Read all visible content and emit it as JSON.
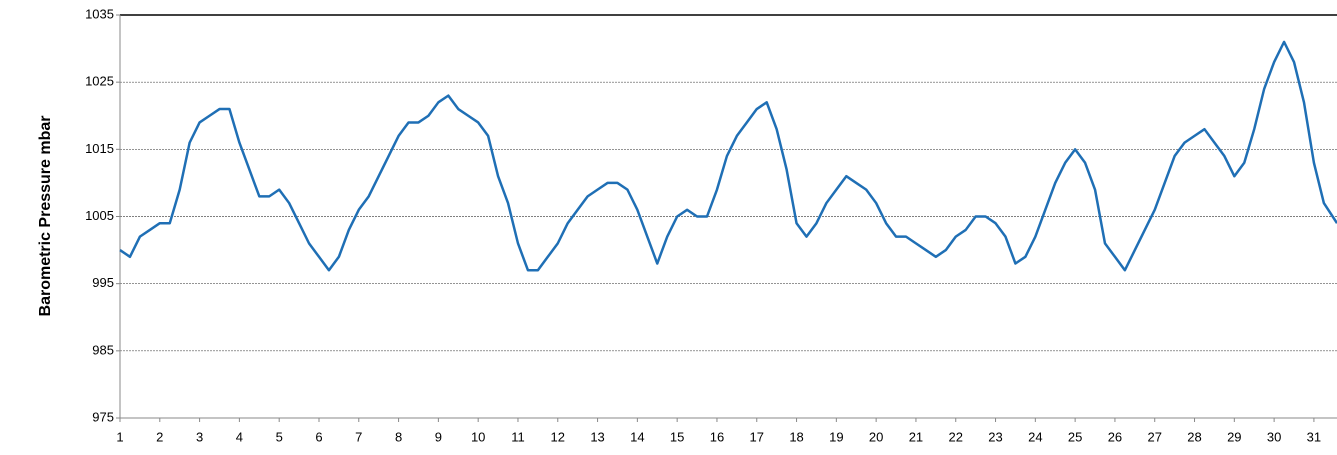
{
  "chart_data": {
    "type": "line",
    "y_label": "Barometric Pressure mbar",
    "xlim": [
      1,
      31.58
    ],
    "xticks": [
      1,
      2,
      3,
      4,
      5,
      6,
      7,
      8,
      9,
      10,
      11,
      12,
      13,
      14,
      15,
      16,
      17,
      18,
      19,
      20,
      21,
      22,
      23,
      24,
      25,
      26,
      27,
      28,
      29,
      30,
      31
    ],
    "ylim": [
      975,
      1035
    ],
    "yticks": [
      975,
      985,
      995,
      1005,
      1015,
      1025,
      1035
    ],
    "grid": true,
    "series": [
      {
        "color": "#1f6fb5",
        "x": [
          1,
          1.25,
          1.5,
          1.75,
          2,
          2.25,
          2.5,
          2.75,
          3,
          3.25,
          3.5,
          3.75,
          4,
          4.25,
          4.5,
          4.75,
          5,
          5.25,
          5.5,
          5.75,
          6,
          6.25,
          6.5,
          6.75,
          7,
          7.25,
          7.5,
          7.75,
          8,
          8.25,
          8.5,
          8.75,
          9,
          9.25,
          9.5,
          9.75,
          10,
          10.25,
          10.5,
          10.75,
          11,
          11.25,
          11.5,
          11.75,
          12,
          12.25,
          12.5,
          12.75,
          13,
          13.25,
          13.5,
          13.75,
          14,
          14.25,
          14.5,
          14.75,
          15,
          15.25,
          15.5,
          15.75,
          16,
          16.25,
          16.5,
          16.75,
          17,
          17.25,
          17.5,
          17.75,
          18,
          18.25,
          18.5,
          18.75,
          19,
          19.25,
          19.5,
          19.75,
          20,
          20.25,
          20.5,
          20.75,
          21,
          21.25,
          21.5,
          21.75,
          22,
          22.25,
          22.5,
          22.75,
          23,
          23.25,
          23.5,
          23.75,
          24,
          24.25,
          24.5,
          24.75,
          25,
          25.25,
          25.5,
          25.75,
          26,
          26.25,
          26.5,
          26.75,
          27,
          27.25,
          27.5,
          27.75,
          28,
          28.25,
          28.5,
          28.75,
          29,
          29.25,
          29.5,
          29.75,
          30,
          30.25,
          30.5,
          30.75,
          31,
          31.25,
          31.58
        ],
        "values": [
          1000,
          999,
          1002,
          1003,
          1004,
          1004,
          1009,
          1016,
          1019,
          1020,
          1021,
          1021,
          1016,
          1012,
          1008,
          1008,
          1009,
          1007,
          1004,
          1001,
          999,
          997,
          999,
          1003,
          1006,
          1008,
          1011,
          1014,
          1017,
          1019,
          1019,
          1020,
          1022,
          1023,
          1021,
          1020,
          1019,
          1017,
          1011,
          1007,
          1001,
          997,
          997,
          999,
          1001,
          1004,
          1006,
          1008,
          1009,
          1010,
          1010,
          1009,
          1006,
          1002,
          998,
          1002,
          1005,
          1006,
          1005,
          1005,
          1009,
          1014,
          1017,
          1019,
          1021,
          1022,
          1018,
          1012,
          1004,
          1002,
          1004,
          1007,
          1009,
          1011,
          1010,
          1009,
          1007,
          1004,
          1002,
          1002,
          1001,
          1000,
          999,
          1000,
          1002,
          1003,
          1005,
          1005,
          1004,
          1002,
          998,
          999,
          1002,
          1006,
          1010,
          1013,
          1015,
          1013,
          1009,
          1001,
          999,
          997,
          1000,
          1003,
          1006,
          1010,
          1014,
          1016,
          1017,
          1018,
          1016,
          1014,
          1011,
          1013,
          1018,
          1024,
          1028,
          1031,
          1028,
          1022,
          1013,
          1007,
          1004
        ]
      }
    ]
  }
}
